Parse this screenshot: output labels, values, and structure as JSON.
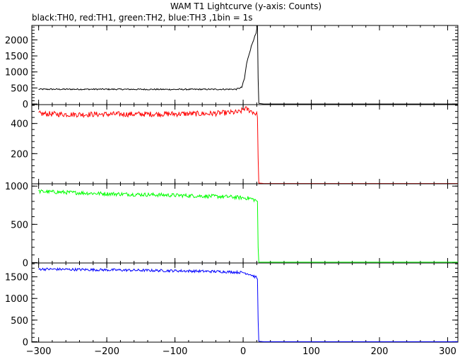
{
  "chart_data": {
    "type": "line",
    "title": "WAM T1 Lightcurve (y-axis: Counts)",
    "subtitle": "black:TH0, red:TH1, green:TH2, blue:TH3 ,1bin = 1s",
    "xlim": [
      -310,
      315
    ],
    "x_ticks": [
      -300,
      -200,
      -100,
      0,
      100,
      200,
      300
    ],
    "bin_seconds": 1,
    "grid": false,
    "panels": [
      {
        "series": "TH0",
        "color": "#000000",
        "ylim": [
          -20,
          2450
        ],
        "y_ticks": [
          0,
          500,
          1000,
          1500,
          2000
        ],
        "points": [
          [
            -300,
            460
          ],
          [
            -200,
            460
          ],
          [
            -100,
            455
          ],
          [
            -10,
            460
          ],
          [
            -2,
            520
          ],
          [
            2,
            800
          ],
          [
            5,
            1250
          ],
          [
            8,
            1500
          ],
          [
            12,
            1800
          ],
          [
            16,
            2050
          ],
          [
            19,
            2200
          ],
          [
            21,
            2450
          ],
          [
            22,
            800
          ],
          [
            23,
            20
          ],
          [
            30,
            0
          ],
          [
            315,
            0
          ]
        ],
        "noise": 20
      },
      {
        "series": "TH1",
        "color": "#ff0000",
        "ylim": [
          0,
          525
        ],
        "y_ticks": [
          200,
          400
        ],
        "points": [
          [
            -300,
            465
          ],
          [
            -250,
            460
          ],
          [
            -150,
            462
          ],
          [
            -50,
            465
          ],
          [
            -5,
            475
          ],
          [
            2,
            500
          ],
          [
            8,
            490
          ],
          [
            15,
            475
          ],
          [
            20,
            460
          ],
          [
            21,
            455
          ],
          [
            22,
            170
          ],
          [
            23,
            5
          ],
          [
            30,
            2
          ],
          [
            315,
            2
          ]
        ],
        "noise": 18
      },
      {
        "series": "TH2",
        "color": "#00ff00",
        "ylim": [
          -5,
          1030
        ],
        "y_ticks": [
          0,
          500,
          1000
        ],
        "points": [
          [
            -300,
            930
          ],
          [
            -200,
            900
          ],
          [
            -100,
            880
          ],
          [
            -20,
            860
          ],
          [
            10,
            840
          ],
          [
            20,
            810
          ],
          [
            21,
            780
          ],
          [
            22,
            200
          ],
          [
            23,
            5
          ],
          [
            30,
            5
          ],
          [
            315,
            5
          ]
        ],
        "noise": 25
      },
      {
        "series": "TH3",
        "color": "#0000ff",
        "ylim": [
          -10,
          1820
        ],
        "y_ticks": [
          0,
          500,
          1000,
          1500
        ],
        "points": [
          [
            -300,
            1680
          ],
          [
            -200,
            1660
          ],
          [
            -100,
            1640
          ],
          [
            -30,
            1620
          ],
          [
            0,
            1600
          ],
          [
            10,
            1560
          ],
          [
            20,
            1480
          ],
          [
            21,
            1430
          ],
          [
            22,
            500
          ],
          [
            23,
            10
          ],
          [
            30,
            0
          ],
          [
            315,
            0
          ]
        ],
        "noise": 30
      }
    ]
  }
}
